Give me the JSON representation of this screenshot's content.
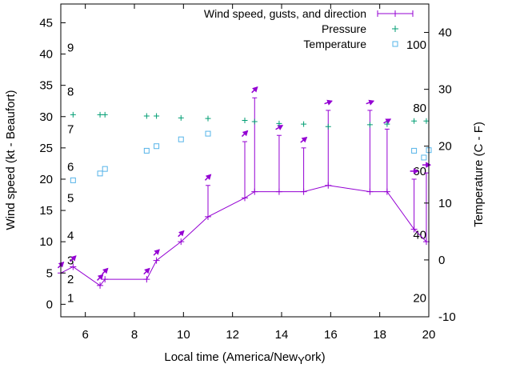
{
  "chart_data": {
    "type": "line",
    "title": "",
    "xlabel_parts": [
      "Local time (America/New",
      "Y",
      "ork)"
    ],
    "ylabel": "Wind speed (kt - Beaufort)",
    "y2label": "Temperature (C - F)",
    "xlim": [
      5,
      20
    ],
    "ylim": [
      -2,
      48
    ],
    "y2lim": [
      -10,
      45
    ],
    "xticks": [
      "6",
      "8",
      "10",
      "12",
      "14",
      "16",
      "18",
      "20"
    ],
    "yticks": [
      "0",
      "5",
      "10",
      "15",
      "20",
      "25",
      "30",
      "35",
      "40",
      "45"
    ],
    "y2ticks": [
      "-10",
      "0",
      "10",
      "20",
      "30",
      "40"
    ],
    "beaufort_labels": [
      {
        "text": "1",
        "y": 1
      },
      {
        "text": "2",
        "y": 4
      },
      {
        "text": "3",
        "y": 7
      },
      {
        "text": "4",
        "y": 11
      },
      {
        "text": "5",
        "y": 17
      },
      {
        "text": "6",
        "y": 22
      },
      {
        "text": "7",
        "y": 28
      },
      {
        "text": "8",
        "y": 34
      },
      {
        "text": "9",
        "y": 41
      }
    ],
    "fahrenheit_labels": [
      {
        "text": "20",
        "c": -6.7
      },
      {
        "text": "40",
        "c": 4.4
      },
      {
        "text": "60",
        "c": 15.6
      },
      {
        "text": "80",
        "c": 26.7
      },
      {
        "text": "100",
        "c": 37.8
      }
    ],
    "legend": {
      "position": "top-right",
      "entries": [
        "Wind speed, gusts, and direction",
        "Pressure",
        "Temperature"
      ]
    },
    "series": [
      {
        "name": "Wind speed, gusts, and direction",
        "color": "#9400d3",
        "points": [
          {
            "x": 5.0,
            "y": 5,
            "gust": 5,
            "dir": 225
          },
          {
            "x": 5.5,
            "y": 6,
            "gust": 6,
            "dir": 225
          },
          {
            "x": 6.6,
            "y": 3,
            "gust": 3,
            "dir": 225
          },
          {
            "x": 6.8,
            "y": 4,
            "gust": 4,
            "dir": 225
          },
          {
            "x": 8.5,
            "y": 4,
            "gust": 4,
            "dir": 225
          },
          {
            "x": 8.9,
            "y": 7,
            "gust": 7,
            "dir": 225
          },
          {
            "x": 9.9,
            "y": 10,
            "gust": 10,
            "dir": 225
          },
          {
            "x": 11.0,
            "y": 14,
            "gust": 19,
            "dir": 225
          },
          {
            "x": 12.5,
            "y": 17,
            "gust": 26,
            "dir": 225
          },
          {
            "x": 12.9,
            "y": 18,
            "gust": 33,
            "dir": 225
          },
          {
            "x": 13.9,
            "y": 18,
            "gust": 27,
            "dir": 240
          },
          {
            "x": 14.9,
            "y": 18,
            "gust": 25,
            "dir": 230
          },
          {
            "x": 15.9,
            "y": 19,
            "gust": 31,
            "dir": 250
          },
          {
            "x": 17.6,
            "y": 18,
            "gust": 31,
            "dir": 250
          },
          {
            "x": 18.3,
            "y": 18,
            "gust": 28,
            "dir": 240
          },
          {
            "x": 19.4,
            "y": 12,
            "gust": 20,
            "dir": 270
          },
          {
            "x": 19.9,
            "y": 10,
            "gust": 21,
            "dir": 270
          }
        ]
      },
      {
        "name": "Pressure",
        "color": "#009e73",
        "points": [
          {
            "x": 5.5,
            "y": 30.3
          },
          {
            "x": 6.6,
            "y": 30.3
          },
          {
            "x": 6.8,
            "y": 30.3
          },
          {
            "x": 8.5,
            "y": 30.1
          },
          {
            "x": 8.9,
            "y": 30.1
          },
          {
            "x": 9.9,
            "y": 29.8
          },
          {
            "x": 11.0,
            "y": 29.7
          },
          {
            "x": 12.5,
            "y": 29.4
          },
          {
            "x": 12.9,
            "y": 29.2
          },
          {
            "x": 13.9,
            "y": 28.9
          },
          {
            "x": 14.9,
            "y": 28.8
          },
          {
            "x": 15.9,
            "y": 28.4
          },
          {
            "x": 17.6,
            "y": 28.7
          },
          {
            "x": 18.3,
            "y": 28.8
          },
          {
            "x": 19.4,
            "y": 29.3
          },
          {
            "x": 19.9,
            "y": 29.3
          }
        ]
      },
      {
        "name": "Temperature",
        "color": "#56b4e9",
        "points": [
          {
            "x": 5.5,
            "c": 14.0
          },
          {
            "x": 6.6,
            "c": 15.2
          },
          {
            "x": 6.8,
            "c": 16.0
          },
          {
            "x": 8.5,
            "c": 19.2
          },
          {
            "x": 8.9,
            "c": 20.0
          },
          {
            "x": 9.9,
            "c": 21.2
          },
          {
            "x": 11.0,
            "c": 22.2
          },
          {
            "x": 19.4,
            "c": 19.2
          },
          {
            "x": 19.8,
            "c": 18.0
          },
          {
            "x": 20.0,
            "c": 19.3
          }
        ]
      }
    ]
  }
}
